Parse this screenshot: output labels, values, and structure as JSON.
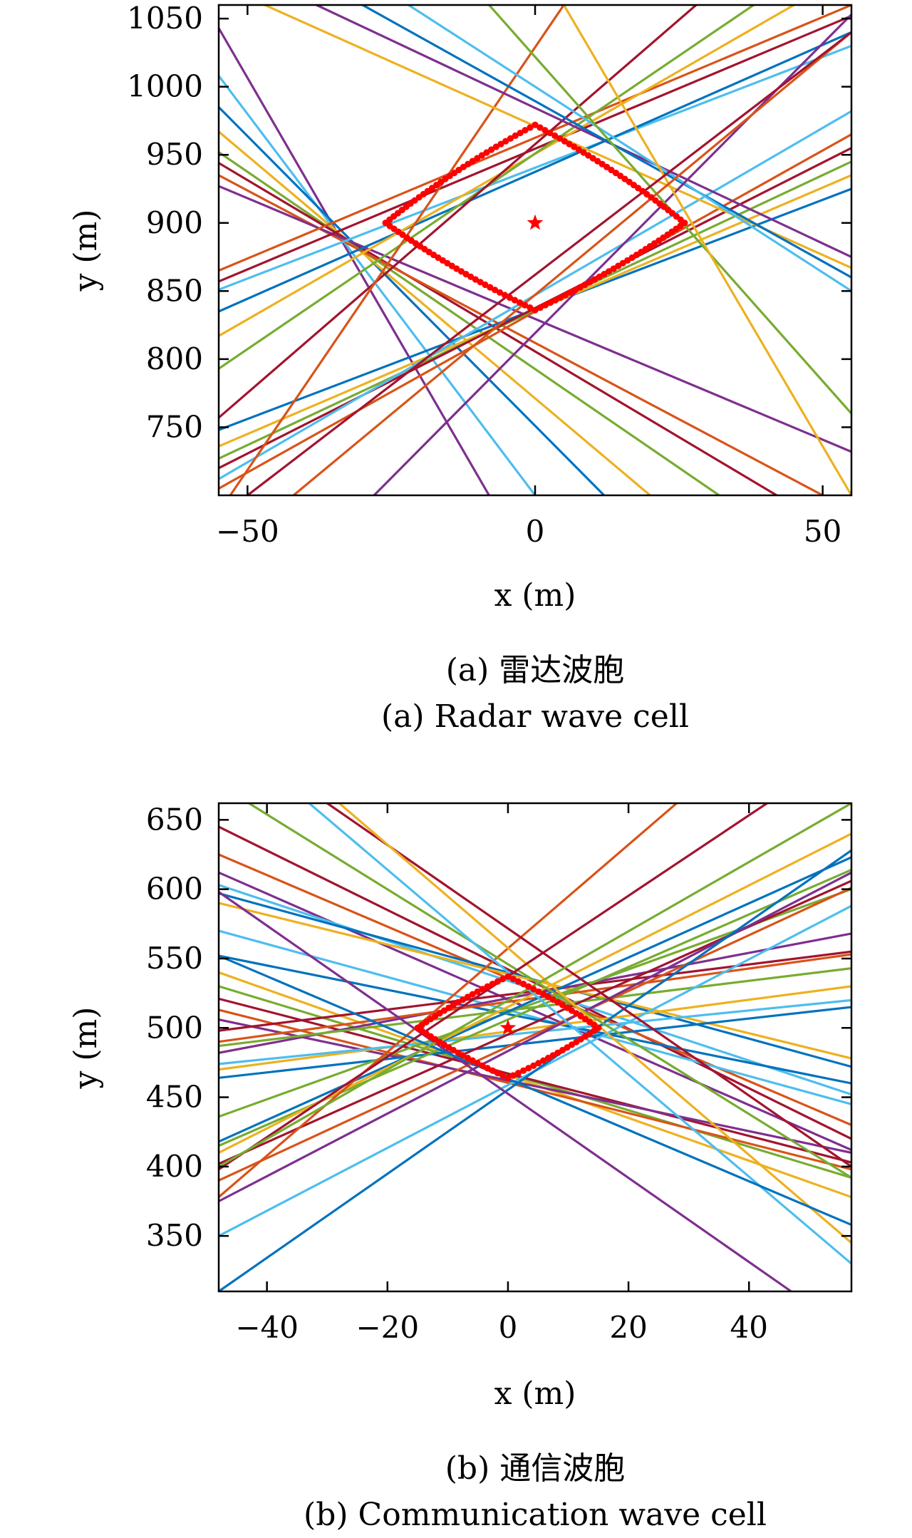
{
  "chart_data": [
    {
      "type": "line",
      "caption_cn": "(a) 雷达波胞",
      "caption_en": "(a) Radar wave cell",
      "xlabel": "x (m)",
      "ylabel": "y (m)",
      "xlim": [
        -55,
        55
      ],
      "ylim": [
        700,
        1060
      ],
      "xticks": [
        -50,
        0,
        50
      ],
      "xtick_labels": [
        "−50",
        "0",
        "50"
      ],
      "yticks": [
        750,
        800,
        850,
        900,
        950,
        1000,
        1050
      ],
      "ytick_labels": [
        "750",
        "800",
        "850",
        "900",
        "950",
        "1000",
        "1050"
      ],
      "grid": false,
      "target": {
        "x": 0,
        "y": 900,
        "marker": "star",
        "color": "#ff0000"
      },
      "cell_boundary": {
        "marker": "dot",
        "color": "#ff0000",
        "vertices": [
          [
            0,
            972
          ],
          [
            26,
            900
          ],
          [
            0,
            836
          ],
          [
            -26,
            900
          ]
        ]
      },
      "line_colors": [
        "#0072bd",
        "#d95319",
        "#edb120",
        "#7e2f8e",
        "#77ac30",
        "#4dbeee",
        "#a2142f"
      ],
      "series": [
        {
          "color": "#7e2f8e",
          "values": [
            [
              -55,
              1043
            ],
            [
              -8,
              700
            ]
          ]
        },
        {
          "color": "#4dbeee",
          "values": [
            [
              -55,
              1008
            ],
            [
              0,
              700
            ]
          ]
        },
        {
          "color": "#0072bd",
          "values": [
            [
              -55,
              985
            ],
            [
              12,
              700
            ]
          ]
        },
        {
          "color": "#edb120",
          "values": [
            [
              -55,
              967
            ],
            [
              20,
              700
            ]
          ]
        },
        {
          "color": "#77ac30",
          "values": [
            [
              -55,
              952
            ],
            [
              32,
              700
            ]
          ]
        },
        {
          "color": "#a2142f",
          "values": [
            [
              -55,
              944
            ],
            [
              42,
              700
            ]
          ]
        },
        {
          "color": "#d95319",
          "values": [
            [
              -55,
              935
            ],
            [
              50,
              700
            ]
          ]
        },
        {
          "color": "#7e2f8e",
          "values": [
            [
              -55,
              927
            ],
            [
              55,
              732
            ]
          ]
        },
        {
          "color": "#d95319",
          "values": [
            [
              -55,
              865
            ],
            [
              55,
              1060
            ]
          ]
        },
        {
          "color": "#a2142f",
          "values": [
            [
              -55,
              857
            ],
            [
              55,
              1052
            ]
          ]
        },
        {
          "color": "#4dbeee",
          "values": [
            [
              -55,
              851
            ],
            [
              55,
              1030
            ]
          ]
        },
        {
          "color": "#0072bd",
          "values": [
            [
              -55,
              835
            ],
            [
              55,
              1040
            ]
          ]
        },
        {
          "color": "#edb120",
          "values": [
            [
              -55,
              817
            ],
            [
              45,
              1060
            ]
          ]
        },
        {
          "color": "#77ac30",
          "values": [
            [
              -55,
              793
            ],
            [
              38,
              1060
            ]
          ]
        },
        {
          "color": "#a2142f",
          "values": [
            [
              -55,
              757
            ],
            [
              28,
              1060
            ]
          ]
        },
        {
          "color": "#0072bd",
          "values": [
            [
              -55,
              748
            ],
            [
              55,
              925
            ]
          ]
        },
        {
          "color": "#edb120",
          "values": [
            [
              -55,
              736
            ],
            [
              55,
              935
            ]
          ]
        },
        {
          "color": "#77ac30",
          "values": [
            [
              -55,
              727
            ],
            [
              55,
              945
            ]
          ]
        },
        {
          "color": "#a2142f",
          "values": [
            [
              -55,
              720
            ],
            [
              55,
              955
            ]
          ]
        },
        {
          "color": "#d95319",
          "values": [
            [
              -55,
              705
            ],
            [
              55,
              965
            ]
          ]
        },
        {
          "color": "#4dbeee",
          "values": [
            [
              -55,
              712
            ],
            [
              55,
              982
            ]
          ]
        },
        {
          "color": "#d95319",
          "values": [
            [
              -53,
              700
            ],
            [
              5,
              1060
            ]
          ]
        },
        {
          "color": "#edb120",
          "values": [
            [
              -47,
              1060
            ],
            [
              55,
              867
            ]
          ]
        },
        {
          "color": "#7e2f8e",
          "values": [
            [
              -38,
              1060
            ],
            [
              55,
              875
            ]
          ]
        },
        {
          "color": "#0072bd",
          "values": [
            [
              -30,
              1060
            ],
            [
              55,
              860
            ]
          ]
        },
        {
          "color": "#4dbeee",
          "values": [
            [
              -22,
              1060
            ],
            [
              55,
              850
            ]
          ]
        },
        {
          "color": "#7e2f8e",
          "values": [
            [
              -28,
              700
            ],
            [
              55,
              1053
            ]
          ]
        },
        {
          "color": "#77ac30",
          "values": [
            [
              -8,
              1060
            ],
            [
              55,
              760
            ]
          ]
        },
        {
          "color": "#edb120",
          "values": [
            [
              5,
              1060
            ],
            [
              55,
              700
            ]
          ]
        },
        {
          "color": "#d95319",
          "values": [
            [
              -42,
              700
            ],
            [
              55,
              1040
            ]
          ]
        },
        {
          "color": "#a2142f",
          "values": [
            [
              -50,
              700
            ],
            [
              55,
              1040
            ]
          ]
        }
      ]
    },
    {
      "type": "line",
      "caption_cn": "(b) 通信波胞",
      "caption_en": "(b) Communication wave cell",
      "xlabel": "x (m)",
      "ylabel": "y (m)",
      "xlim": [
        -48,
        57
      ],
      "ylim": [
        310,
        662
      ],
      "xticks": [
        -40,
        -20,
        0,
        20,
        40
      ],
      "xtick_labels": [
        "−40",
        "−20",
        "0",
        "20",
        "40"
      ],
      "yticks": [
        350,
        400,
        450,
        500,
        550,
        600,
        650
      ],
      "ytick_labels": [
        "350",
        "400",
        "450",
        "500",
        "550",
        "600",
        "650"
      ],
      "grid": false,
      "target": {
        "x": 0,
        "y": 500,
        "marker": "star",
        "color": "#ff0000"
      },
      "cell_boundary": {
        "marker": "dot",
        "color": "#ff0000",
        "vertices": [
          [
            0,
            537
          ],
          [
            15,
            500
          ],
          [
            0,
            464
          ],
          [
            -15,
            500
          ]
        ]
      },
      "line_colors": [
        "#0072bd",
        "#d95319",
        "#edb120",
        "#7e2f8e",
        "#77ac30",
        "#4dbeee",
        "#a2142f"
      ],
      "series": [
        {
          "color": "#a2142f",
          "values": [
            [
              -48,
              645
            ],
            [
              57,
              420
            ]
          ]
        },
        {
          "color": "#d95319",
          "values": [
            [
              -48,
              625
            ],
            [
              57,
              430
            ]
          ]
        },
        {
          "color": "#7e2f8e",
          "values": [
            [
              -48,
              612
            ],
            [
              57,
              412
            ]
          ]
        },
        {
          "color": "#4dbeee",
          "values": [
            [
              -48,
              603
            ],
            [
              57,
              452
            ]
          ]
        },
        {
          "color": "#0072bd",
          "values": [
            [
              -48,
              597
            ],
            [
              57,
              472
            ]
          ]
        },
        {
          "color": "#edb120",
          "values": [
            [
              -48,
              590
            ],
            [
              57,
              478
            ]
          ]
        },
        {
          "color": "#4dbeee",
          "values": [
            [
              -48,
              570
            ],
            [
              57,
              445
            ]
          ]
        },
        {
          "color": "#0072bd",
          "values": [
            [
              -48,
              552
            ],
            [
              57,
              460
            ]
          ]
        },
        {
          "color": "#edb120",
          "values": [
            [
              -48,
              540
            ],
            [
              57,
              378
            ]
          ]
        },
        {
          "color": "#77ac30",
          "values": [
            [
              -48,
              530
            ],
            [
              57,
              392
            ]
          ]
        },
        {
          "color": "#a2142f",
          "values": [
            [
              -48,
              521
            ],
            [
              57,
              403
            ]
          ]
        },
        {
          "color": "#d95319",
          "values": [
            [
              -48,
              513
            ],
            [
              57,
              398
            ]
          ]
        },
        {
          "color": "#7e2f8e",
          "values": [
            [
              -48,
              506
            ],
            [
              57,
              410
            ]
          ]
        },
        {
          "color": "#a2142f",
          "values": [
            [
              -48,
              498
            ],
            [
              57,
              555
            ]
          ]
        },
        {
          "color": "#7e2f8e",
          "values": [
            [
              -48,
              482
            ],
            [
              57,
              568
            ]
          ]
        },
        {
          "color": "#77ac30",
          "values": [
            [
              -48,
              487
            ],
            [
              57,
              543
            ]
          ]
        },
        {
          "color": "#d95319",
          "values": [
            [
              -48,
              490
            ],
            [
              57,
              553
            ]
          ]
        },
        {
          "color": "#edb120",
          "values": [
            [
              -48,
              470
            ],
            [
              57,
              530
            ]
          ]
        },
        {
          "color": "#0072bd",
          "values": [
            [
              -48,
              464
            ],
            [
              57,
              515
            ]
          ]
        },
        {
          "color": "#4dbeee",
          "values": [
            [
              -48,
              474
            ],
            [
              57,
              520
            ]
          ]
        },
        {
          "color": "#77ac30",
          "values": [
            [
              -48,
              436
            ],
            [
              57,
              600
            ]
          ]
        },
        {
          "color": "#0072bd",
          "values": [
            [
              -48,
              418
            ],
            [
              57,
              623
            ]
          ]
        },
        {
          "color": "#77ac30",
          "values": [
            [
              -48,
              415
            ],
            [
              57,
              614
            ]
          ]
        },
        {
          "color": "#edb120",
          "values": [
            [
              -48,
              410
            ],
            [
              57,
              640
            ]
          ]
        },
        {
          "color": "#a2142f",
          "values": [
            [
              -48,
              402
            ],
            [
              57,
              606
            ]
          ]
        },
        {
          "color": "#d95319",
          "values": [
            [
              -48,
              390
            ],
            [
              57,
              601
            ]
          ]
        },
        {
          "color": "#7e2f8e",
          "values": [
            [
              -48,
              375
            ],
            [
              57,
              612
            ]
          ]
        },
        {
          "color": "#d95319",
          "values": [
            [
              -48,
              378
            ],
            [
              28,
              662
            ]
          ]
        },
        {
          "color": "#4dbeee",
          "values": [
            [
              -48,
              350
            ],
            [
              57,
              588
            ]
          ]
        },
        {
          "color": "#0072bd",
          "values": [
            [
              -48,
              310
            ],
            [
              57,
              628
            ]
          ]
        },
        {
          "color": "#7e2f8e",
          "values": [
            [
              -48,
              598
            ],
            [
              47,
              310
            ]
          ]
        },
        {
          "color": "#77ac30",
          "values": [
            [
              -43,
              662
            ],
            [
              57,
              392
            ]
          ]
        },
        {
          "color": "#a2142f",
          "values": [
            [
              -30,
              662
            ],
            [
              57,
              400
            ]
          ]
        },
        {
          "color": "#edb120",
          "values": [
            [
              -28,
              662
            ],
            [
              57,
              345
            ]
          ]
        },
        {
          "color": "#4dbeee",
          "values": [
            [
              -33,
              662
            ],
            [
              57,
              330
            ]
          ]
        },
        {
          "color": "#0072bd",
          "values": [
            [
              -48,
              552
            ],
            [
              57,
              358
            ]
          ]
        },
        {
          "color": "#a2142f",
          "values": [
            [
              -48,
              398
            ],
            [
              43,
              662
            ]
          ]
        },
        {
          "color": "#77ac30",
          "values": [
            [
              -48,
              400
            ],
            [
              57,
              662
            ]
          ]
        }
      ]
    }
  ]
}
